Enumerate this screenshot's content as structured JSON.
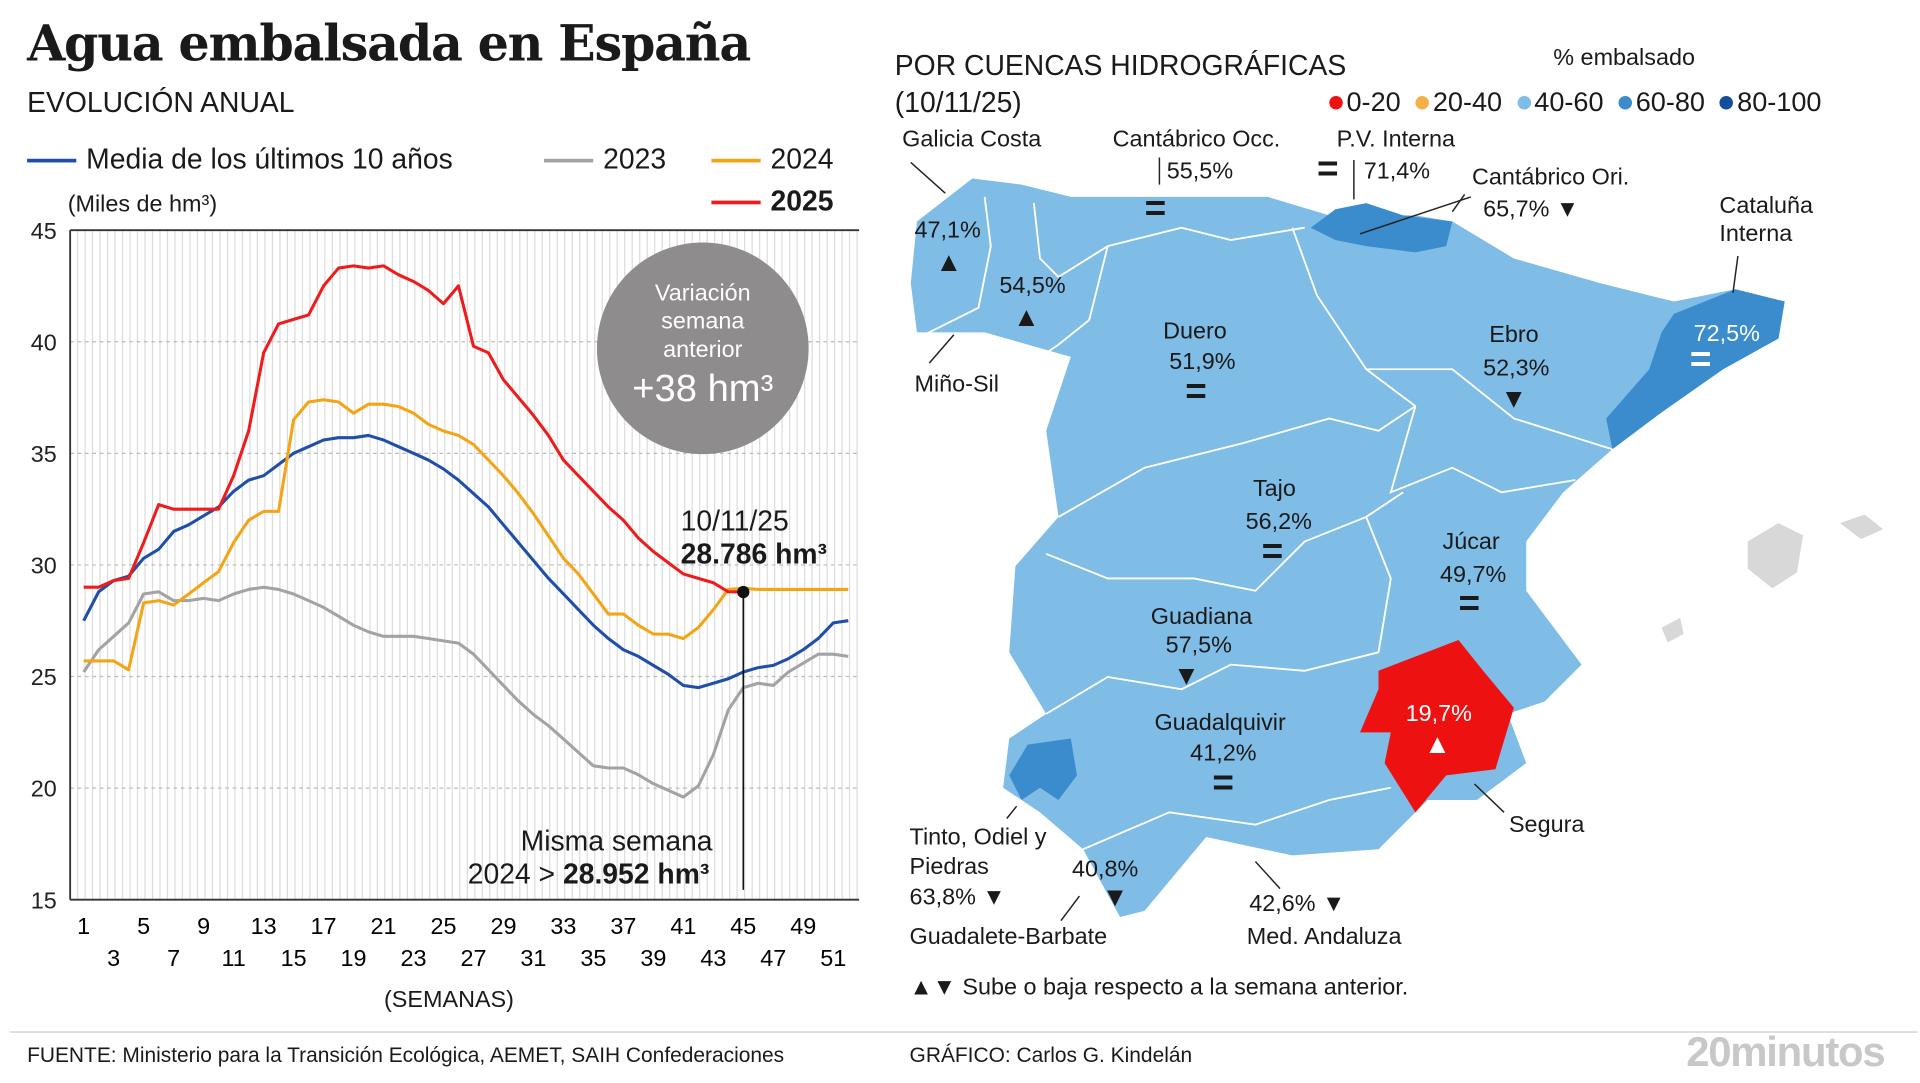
{
  "title": "Agua embalsada en España",
  "left": {
    "subtitle": "EVOLUCIÓN ANUAL",
    "unit": "(Miles de hm³)",
    "xlabel": "(SEMANAS)",
    "bubble": {
      "line1": "Variación",
      "line2": "semana",
      "line3": "anterior",
      "value": "+38 hm³"
    },
    "annotation_current": {
      "date": "10/11/25",
      "value": "28.786 hm³"
    },
    "annotation_prev": {
      "line1": "Misma semana",
      "year": "2024",
      "sep": ">",
      "value": "28.952 hm³"
    }
  },
  "chart_data": {
    "type": "line",
    "title": "EVOLUCIÓN ANUAL",
    "ylabel": "(Miles de hm³)",
    "xlabel": "(SEMANAS)",
    "ylim": [
      15,
      45
    ],
    "xlim": [
      1,
      52
    ],
    "yticks": [
      "45",
      "40",
      "35",
      "30",
      "25",
      "20",
      "15"
    ],
    "xticks_top": [
      "1",
      "5",
      "9",
      "13",
      "17",
      "21",
      "25",
      "29",
      "33",
      "37",
      "41",
      "45",
      "49"
    ],
    "xticks_bottom": [
      "3",
      "7",
      "11",
      "15",
      "19",
      "23",
      "27",
      "31",
      "35",
      "39",
      "43",
      "47",
      "51"
    ],
    "grid": true,
    "legend": "top",
    "series": [
      {
        "name": "Media de los últimos 10 años",
        "color": "#1f4fa8",
        "values": [
          27.5,
          28.8,
          29.3,
          29.5,
          30.3,
          30.7,
          31.5,
          31.8,
          32.2,
          32.6,
          33.3,
          33.8,
          34.0,
          34.5,
          35.0,
          35.3,
          35.6,
          35.7,
          35.7,
          35.8,
          35.6,
          35.3,
          35.0,
          34.7,
          34.3,
          33.8,
          33.2,
          32.6,
          31.8,
          31.0,
          30.2,
          29.4,
          28.7,
          28.0,
          27.3,
          26.7,
          26.2,
          25.9,
          25.5,
          25.1,
          24.6,
          24.5,
          24.7,
          24.9,
          25.2,
          25.4,
          25.5,
          25.8,
          26.2,
          26.7,
          27.4,
          27.5
        ]
      },
      {
        "name": "2023",
        "color": "#a3a3a3",
        "values": [
          25.2,
          26.2,
          26.8,
          27.4,
          28.7,
          28.8,
          28.4,
          28.4,
          28.5,
          28.4,
          28.7,
          28.9,
          29.0,
          28.9,
          28.7,
          28.4,
          28.1,
          27.7,
          27.3,
          27.0,
          26.8,
          26.8,
          26.8,
          26.7,
          26.6,
          26.5,
          26.0,
          25.3,
          24.6,
          23.9,
          23.3,
          22.8,
          22.2,
          21.6,
          21.0,
          20.9,
          20.9,
          20.6,
          20.2,
          19.9,
          19.6,
          20.1,
          21.5,
          23.5,
          24.5,
          24.7,
          24.6,
          25.2,
          25.6,
          26.0,
          26.0,
          25.9
        ]
      },
      {
        "name": "2024",
        "color": "#f2a516",
        "values": [
          25.7,
          25.7,
          25.7,
          25.3,
          28.3,
          28.4,
          28.2,
          28.7,
          29.2,
          29.7,
          31.0,
          32.0,
          32.4,
          32.4,
          36.5,
          37.3,
          37.4,
          37.3,
          36.8,
          37.2,
          37.2,
          37.1,
          36.8,
          36.3,
          36.0,
          35.8,
          35.4,
          34.7,
          34.0,
          33.2,
          32.3,
          31.3,
          30.3,
          29.6,
          28.7,
          27.8,
          27.8,
          27.3,
          26.9,
          26.9,
          26.7,
          27.2,
          28.0,
          28.9,
          28.952,
          28.9,
          28.9,
          28.9,
          28.9,
          28.9,
          28.9,
          28.9
        ]
      },
      {
        "name": "2025",
        "color": "#ee1c1c",
        "values": [
          29.0,
          29.0,
          29.3,
          29.4,
          31.0,
          32.7,
          32.5,
          32.5,
          32.5,
          32.5,
          34.0,
          36.0,
          39.5,
          40.8,
          41.0,
          41.2,
          42.5,
          43.3,
          43.4,
          43.3,
          43.4,
          43.0,
          42.7,
          42.3,
          41.7,
          42.5,
          39.8,
          39.5,
          38.3,
          37.5,
          36.7,
          35.8,
          34.7,
          34.0,
          33.3,
          32.6,
          32.0,
          31.2,
          30.6,
          30.1,
          29.6,
          29.4,
          29.2,
          28.8,
          28.786
        ]
      }
    ]
  },
  "map": {
    "title": "POR CUENCAS HIDROGRÁFICAS",
    "date": "(10/11/25)",
    "legend_title": "% embalsado",
    "legend": [
      {
        "label": "0-20",
        "color": "#ee1111"
      },
      {
        "label": "20-40",
        "color": "#f5b04a"
      },
      {
        "label": "40-60",
        "color": "#7fbce6"
      },
      {
        "label": "60-80",
        "color": "#3a8ccc"
      },
      {
        "label": "80-100",
        "color": "#124e9c"
      }
    ],
    "basins": [
      {
        "name": "Galicia Costa",
        "value": "47,1%",
        "trend": "▲"
      },
      {
        "name": "Miño-Sil",
        "value": "54,5%",
        "trend": "▲"
      },
      {
        "name": "Cantábrico Occ.",
        "value": "55,5%",
        "trend": "="
      },
      {
        "name": "P.V. Interna",
        "value": "71,4%",
        "trend": "="
      },
      {
        "name": "Cantábrico Ori.",
        "value": "65,7%",
        "trend": "▼"
      },
      {
        "name": "Cataluña Interna",
        "value": "72,5%",
        "trend": "="
      },
      {
        "name": "Duero",
        "value": "51,9%",
        "trend": "="
      },
      {
        "name": "Ebro",
        "value": "52,3%",
        "trend": "▼"
      },
      {
        "name": "Tajo",
        "value": "56,2%",
        "trend": "="
      },
      {
        "name": "Júcar",
        "value": "49,7%",
        "trend": "="
      },
      {
        "name": "Guadiana",
        "value": "57,5%",
        "trend": "▼"
      },
      {
        "name": "Guadalquivir",
        "value": "41,2%",
        "trend": "="
      },
      {
        "name": "Segura",
        "value": "19,7%",
        "trend": "▲"
      },
      {
        "name": "Tinto, Odiel y Piedras",
        "value": "63,8%",
        "trend": "▼"
      },
      {
        "name": "Guadalete-Barbate",
        "value": "40,8%",
        "trend": "▼"
      },
      {
        "name": "Med. Andaluza",
        "value": "42,6%",
        "trend": "▼"
      }
    ],
    "note": "Sube o baja respecto a la semana anterior.",
    "note_icons": "▲▼"
  },
  "footer": {
    "source": "FUENTE: Ministerio para la Transición Ecológica, AEMET, SAIH Confederaciones",
    "credit": "GRÁFICO: Carlos G. Kindelán",
    "logo": "20minutos"
  }
}
